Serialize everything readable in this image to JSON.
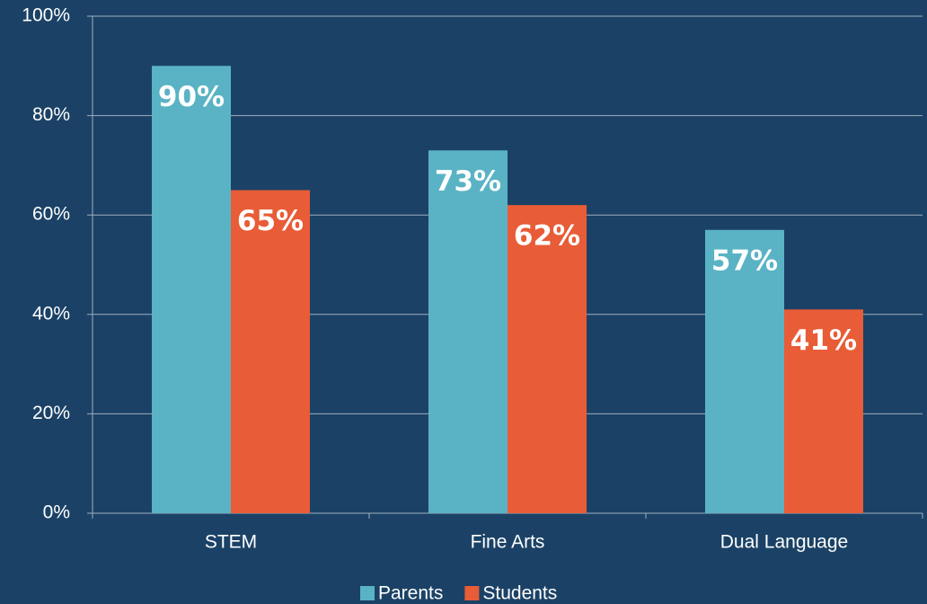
{
  "chart_data": {
    "type": "bar",
    "categories": [
      "STEM",
      "Fine Arts",
      "Dual Language"
    ],
    "series": [
      {
        "name": "Parents",
        "color": "#5ab3c4",
        "values": [
          90,
          73,
          57
        ],
        "value_labels": [
          "90%",
          "73%",
          "57%"
        ]
      },
      {
        "name": "Students",
        "color": "#e85c37",
        "values": [
          65,
          62,
          41
        ],
        "value_labels": [
          "65%",
          "62%",
          "41%"
        ]
      }
    ],
    "ylim": [
      0,
      100
    ],
    "yticks": [
      {
        "value": 0,
        "label": "0%"
      },
      {
        "value": 20,
        "label": "20%"
      },
      {
        "value": 40,
        "label": "40%"
      },
      {
        "value": 60,
        "label": "60%"
      },
      {
        "value": 80,
        "label": "80%"
      },
      {
        "value": 100,
        "label": "100%"
      }
    ],
    "grid": true,
    "legend": "bottom"
  }
}
